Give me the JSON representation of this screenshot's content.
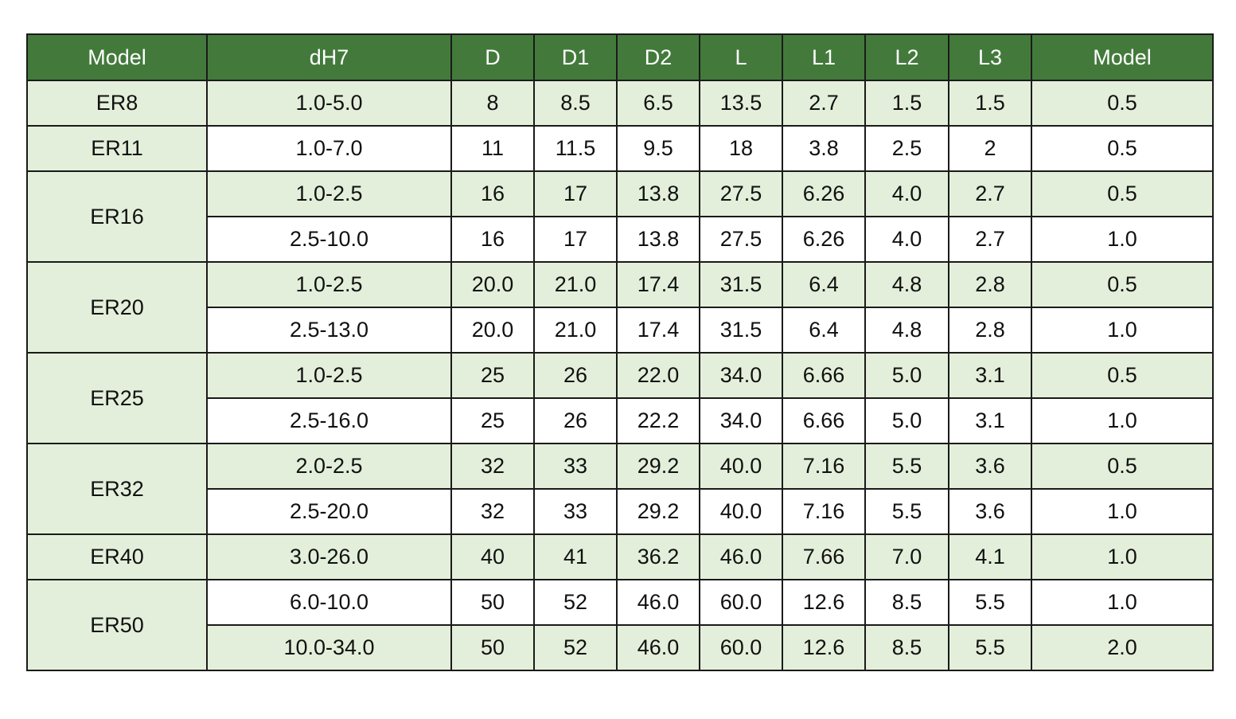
{
  "table": {
    "headers": [
      "Model",
      "dH7",
      "D",
      "D1",
      "D2",
      "L",
      "L1",
      "L2",
      "L3",
      "Model"
    ],
    "groups": [
      {
        "model": "ER8",
        "rows": [
          [
            "1.0-5.0",
            "8",
            "8.5",
            "6.5",
            "13.5",
            "2.7",
            "1.5",
            "1.5",
            "0.5"
          ]
        ]
      },
      {
        "model": "ER11",
        "rows": [
          [
            "1.0-7.0",
            "11",
            "11.5",
            "9.5",
            "18",
            "3.8",
            "2.5",
            "2",
            "0.5"
          ]
        ]
      },
      {
        "model": "ER16",
        "rows": [
          [
            "1.0-2.5",
            "16",
            "17",
            "13.8",
            "27.5",
            "6.26",
            "4.0",
            "2.7",
            "0.5"
          ],
          [
            "2.5-10.0",
            "16",
            "17",
            "13.8",
            "27.5",
            "6.26",
            "4.0",
            "2.7",
            "1.0"
          ]
        ]
      },
      {
        "model": "ER20",
        "rows": [
          [
            "1.0-2.5",
            "20.0",
            "21.0",
            "17.4",
            "31.5",
            "6.4",
            "4.8",
            "2.8",
            "0.5"
          ],
          [
            "2.5-13.0",
            "20.0",
            "21.0",
            "17.4",
            "31.5",
            "6.4",
            "4.8",
            "2.8",
            "1.0"
          ]
        ]
      },
      {
        "model": "ER25",
        "rows": [
          [
            "1.0-2.5",
            "25",
            "26",
            "22.0",
            "34.0",
            "6.66",
            "5.0",
            "3.1",
            "0.5"
          ],
          [
            "2.5-16.0",
            "25",
            "26",
            "22.2",
            "34.0",
            "6.66",
            "5.0",
            "3.1",
            "1.0"
          ]
        ]
      },
      {
        "model": "ER32",
        "rows": [
          [
            "2.0-2.5",
            "32",
            "33",
            "29.2",
            "40.0",
            "7.16",
            "5.5",
            "3.6",
            "0.5"
          ],
          [
            "2.5-20.0",
            "32",
            "33",
            "29.2",
            "40.0",
            "7.16",
            "5.5",
            "3.6",
            "1.0"
          ]
        ]
      },
      {
        "model": "ER40",
        "rows": [
          [
            "3.0-26.0",
            "40",
            "41",
            "36.2",
            "46.0",
            "7.66",
            "7.0",
            "4.1",
            "1.0"
          ]
        ]
      },
      {
        "model": "ER50",
        "rows": [
          [
            "6.0-10.0",
            "50",
            "52",
            "46.0",
            "60.0",
            "12.6",
            "8.5",
            "5.5",
            "1.0"
          ],
          [
            "10.0-34.0",
            "50",
            "52",
            "46.0",
            "60.0",
            "12.6",
            "8.5",
            "5.5",
            "2.0"
          ]
        ]
      }
    ],
    "colors": {
      "header_bg": "#437a3c",
      "header_text": "#ffffff",
      "band_bg": "#e3efda",
      "plain_bg": "#ffffff",
      "border": "#1a1a1a"
    }
  }
}
